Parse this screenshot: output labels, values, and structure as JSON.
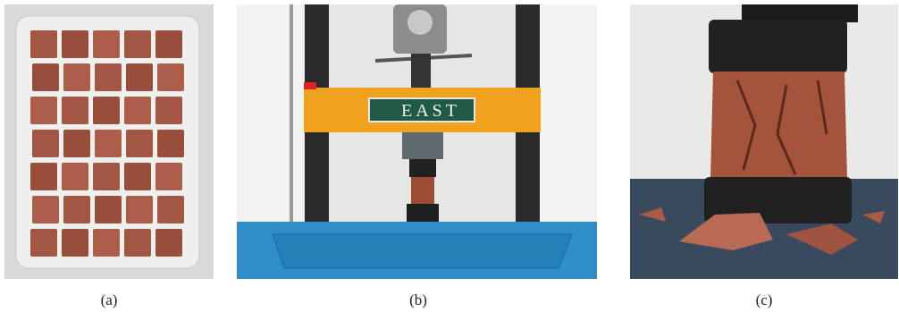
{
  "panels": [
    {
      "caption": "(a)"
    },
    {
      "caption": "(b)",
      "sign": "EAST"
    },
    {
      "caption": "(c)"
    }
  ]
}
